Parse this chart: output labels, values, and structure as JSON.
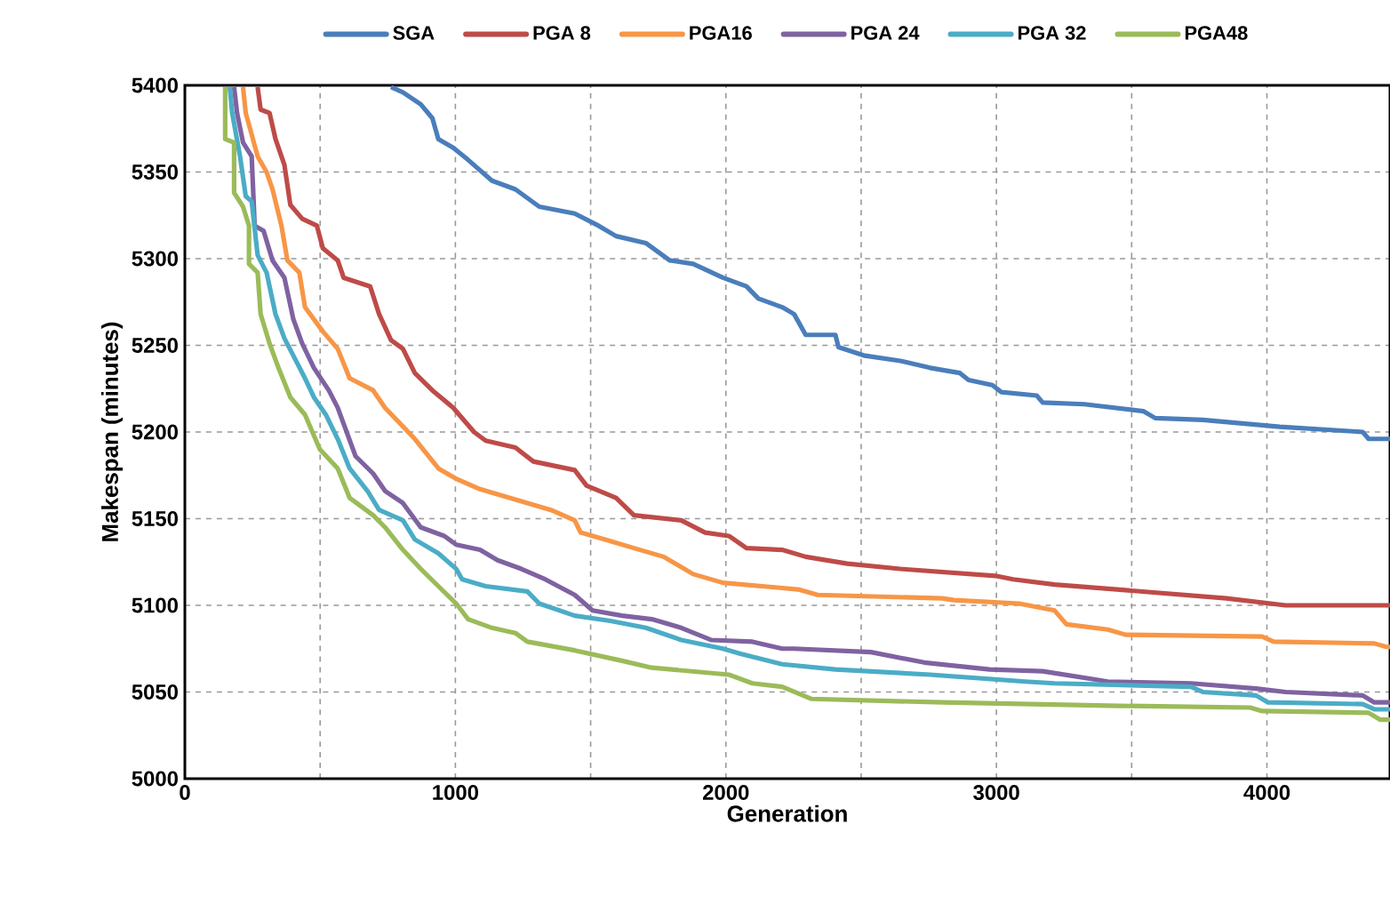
{
  "chart_data": {
    "type": "line",
    "xlabel": "Generation",
    "ylabel": "Makespan (minutes)",
    "xlim": [
      0,
      4455
    ],
    "ylim": [
      5000,
      5400
    ],
    "xticks": [
      0,
      {
        "value": 500,
        "label": null
      },
      1000,
      {
        "value": 1500,
        "label": null
      },
      2000,
      {
        "value": 2500,
        "label": null
      },
      3000,
      {
        "value": 3500,
        "label": null
      },
      4000
    ],
    "yticks": [
      5000,
      5050,
      5100,
      5150,
      5200,
      5250,
      5300,
      5350,
      5400
    ],
    "grid": true,
    "legend": "top",
    "line_style": "solid",
    "marker": "none",
    "series": [
      {
        "name": "SGA",
        "color": "#4a7ebb",
        "x": [
          762,
          806,
          872,
          915,
          937,
          992,
          1047,
          1135,
          1222,
          1310,
          1441,
          1529,
          1594,
          1704,
          1792,
          1879,
          1989,
          2076,
          2120,
          2208,
          2252,
          2295,
          2405,
          2416,
          2514,
          2645,
          2755,
          2865,
          2897,
          2985,
          3018,
          3149,
          3171,
          3325,
          3543,
          3587,
          3763,
          4047,
          4354,
          4376,
          4455
        ],
        "values": [
          5399,
          5396,
          5389,
          5381,
          5369,
          5364,
          5357,
          5345,
          5340,
          5330,
          5326,
          5319,
          5313,
          5309,
          5299,
          5297,
          5289,
          5284,
          5277,
          5272,
          5268,
          5256,
          5256,
          5249,
          5244,
          5241,
          5237,
          5234,
          5230,
          5227,
          5223,
          5221,
          5217,
          5216,
          5212,
          5208,
          5207,
          5203,
          5200,
          5196,
          5196
        ]
      },
      {
        "name": "PGA 8",
        "color": "#be4b48",
        "x": [
          269,
          280,
          313,
          335,
          368,
          390,
          434,
          488,
          510,
          565,
          587,
          685,
          718,
          762,
          806,
          850,
          915,
          992,
          1069,
          1112,
          1222,
          1288,
          1441,
          1485,
          1594,
          1660,
          1835,
          1923,
          2011,
          2076,
          2208,
          2295,
          2449,
          2645,
          2996,
          3062,
          3215,
          3456,
          3850,
          4069,
          4455
        ],
        "values": [
          5399,
          5386,
          5384,
          5369,
          5354,
          5331,
          5323,
          5319,
          5306,
          5299,
          5289,
          5284,
          5268,
          5253,
          5248,
          5234,
          5224,
          5214,
          5200,
          5195,
          5191,
          5183,
          5178,
          5169,
          5162,
          5152,
          5149,
          5142,
          5140,
          5133,
          5132,
          5128,
          5124,
          5121,
          5117,
          5115,
          5112,
          5109,
          5104,
          5100,
          5100
        ]
      },
      {
        "name": "PGA16",
        "color": "#f79646",
        "x": [
          215,
          225,
          269,
          302,
          324,
          357,
          379,
          423,
          444,
          510,
          565,
          609,
          696,
          740,
          850,
          937,
          1003,
          1091,
          1222,
          1353,
          1441,
          1463,
          1573,
          1660,
          1770,
          1879,
          1989,
          2208,
          2273,
          2339,
          2799,
          2843,
          3084,
          3215,
          3259,
          3412,
          3478,
          3982,
          4025,
          4397,
          4442,
          4455
        ],
        "values": [
          5399,
          5384,
          5359,
          5350,
          5340,
          5319,
          5299,
          5292,
          5272,
          5258,
          5248,
          5231,
          5224,
          5214,
          5196,
          5179,
          5173,
          5167,
          5161,
          5155,
          5149,
          5142,
          5137,
          5133,
          5128,
          5118,
          5113,
          5110,
          5109,
          5106,
          5104,
          5103,
          5101,
          5097,
          5089,
          5086,
          5083,
          5082,
          5079,
          5078,
          5076,
          5076
        ]
      },
      {
        "name": "PGA 24",
        "color": "#7f62a1",
        "x": [
          182,
          193,
          215,
          247,
          258,
          291,
          324,
          368,
          401,
          434,
          477,
          532,
          565,
          631,
          696,
          740,
          806,
          872,
          959,
          1003,
          1091,
          1156,
          1244,
          1332,
          1441,
          1507,
          1616,
          1726,
          1835,
          1945,
          2098,
          2208,
          2252,
          2536,
          2733,
          2975,
          3171,
          3412,
          3719,
          3960,
          4069,
          4354,
          4397,
          4455
        ],
        "values": [
          5399,
          5384,
          5367,
          5359,
          5319,
          5316,
          5299,
          5289,
          5265,
          5251,
          5237,
          5224,
          5214,
          5186,
          5176,
          5166,
          5159,
          5145,
          5140,
          5135,
          5132,
          5126,
          5121,
          5115,
          5106,
          5097,
          5094,
          5092,
          5087,
          5080,
          5079,
          5075,
          5075,
          5073,
          5067,
          5063,
          5062,
          5056,
          5055,
          5052,
          5050,
          5048,
          5044,
          5044
        ]
      },
      {
        "name": "PGA 32",
        "color": "#4bacc6",
        "x": [
          166,
          175,
          204,
          225,
          247,
          269,
          302,
          335,
          368,
          401,
          444,
          477,
          521,
          565,
          609,
          675,
          718,
          806,
          850,
          937,
          1003,
          1025,
          1112,
          1266,
          1310,
          1441,
          1573,
          1704,
          1835,
          1989,
          2054,
          2208,
          2405,
          2755,
          3106,
          3215,
          3719,
          3763,
          3960,
          4004,
          4354,
          4397,
          4455
        ],
        "values": [
          5399,
          5384,
          5359,
          5336,
          5333,
          5302,
          5292,
          5268,
          5254,
          5244,
          5231,
          5220,
          5210,
          5196,
          5179,
          5166,
          5155,
          5149,
          5138,
          5130,
          5121,
          5115,
          5111,
          5108,
          5101,
          5094,
          5091,
          5087,
          5080,
          5075,
          5072,
          5066,
          5063,
          5060,
          5056,
          5055,
          5053,
          5050,
          5048,
          5044,
          5043,
          5040,
          5040
        ]
      },
      {
        "name": "PGA48",
        "color": "#9bbb59",
        "x": [
          149,
          149,
          182,
          182,
          215,
          237,
          237,
          269,
          280,
          313,
          346,
          390,
          444,
          499,
          565,
          609,
          696,
          740,
          806,
          872,
          937,
          1003,
          1047,
          1135,
          1222,
          1266,
          1441,
          1616,
          1726,
          2011,
          2098,
          2208,
          2317,
          2799,
          3456,
          3938,
          3982,
          4376,
          4419,
          4455
        ],
        "values": [
          5399,
          5369,
          5367,
          5338,
          5330,
          5319,
          5297,
          5292,
          5268,
          5251,
          5237,
          5220,
          5210,
          5190,
          5179,
          5162,
          5152,
          5145,
          5132,
          5121,
          5111,
          5101,
          5092,
          5087,
          5084,
          5079,
          5074,
          5068,
          5064,
          5060,
          5055,
          5053,
          5046,
          5044,
          5042,
          5041,
          5039,
          5038,
          5034,
          5034
        ]
      }
    ]
  }
}
